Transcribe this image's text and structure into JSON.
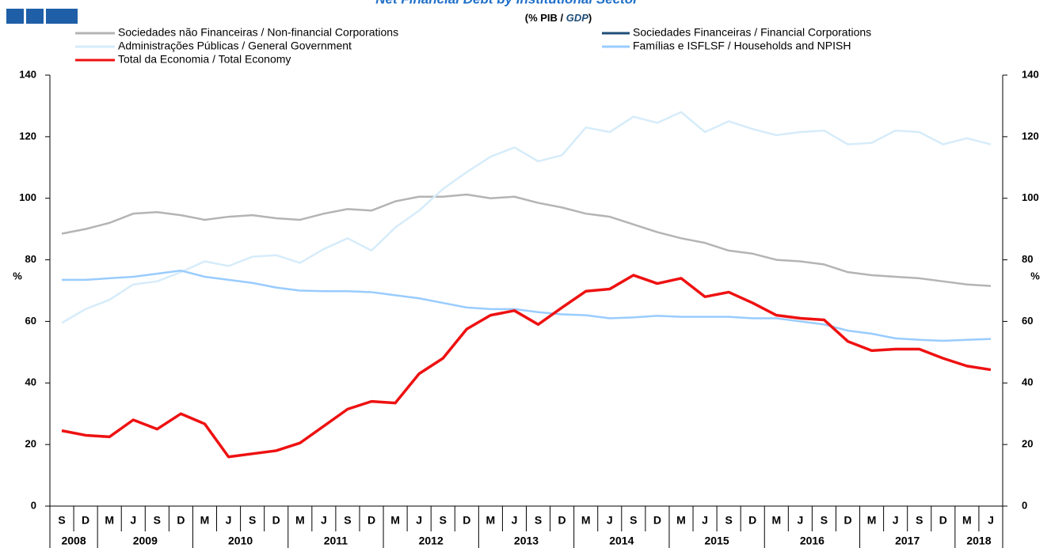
{
  "chart_data": {
    "type": "line",
    "title": "Net Financial Debt by Institutional Sector",
    "subtitle_parts": [
      "(% PIB / ",
      "GDP",
      ")"
    ],
    "y_label": "%",
    "categories": [
      "S",
      "D",
      "M",
      "J",
      "S",
      "D",
      "M",
      "J",
      "S",
      "D",
      "M",
      "J",
      "S",
      "D",
      "M",
      "J",
      "S",
      "D",
      "M",
      "J",
      "S",
      "D",
      "M",
      "J",
      "S",
      "D",
      "M",
      "J",
      "S",
      "D",
      "M",
      "J",
      "S",
      "D",
      "M",
      "J",
      "S",
      "D",
      "M",
      "J"
    ],
    "category_groups": [
      "2008",
      "2008",
      "2009",
      "2009",
      "2009",
      "2009",
      "2010",
      "2010",
      "2010",
      "2010",
      "2011",
      "2011",
      "2011",
      "2011",
      "2012",
      "2012",
      "2012",
      "2012",
      "2013",
      "2013",
      "2013",
      "2013",
      "2014",
      "2014",
      "2014",
      "2014",
      "2015",
      "2015",
      "2015",
      "2015",
      "2016",
      "2016",
      "2016",
      "2016",
      "2017",
      "2017",
      "2017",
      "2017",
      "2018",
      "2018"
    ],
    "ylim": [
      0,
      140
    ],
    "yticks": [
      0,
      20,
      40,
      60,
      80,
      100,
      120,
      140
    ],
    "y2lim": [
      0,
      140
    ],
    "y2ticks": [
      0,
      20,
      40,
      60,
      80,
      100,
      120,
      140
    ],
    "series": [
      {
        "name": "Sociedades não Financeiras / Non-financial Corporations",
        "color": "#b4b4b4",
        "values": [
          88.5,
          90,
          92,
          95,
          95.5,
          94.5,
          93,
          94,
          94.5,
          93.5,
          93,
          95,
          96.5,
          96,
          99,
          100.5,
          100.5,
          101.2,
          100,
          100.5,
          98.5,
          97,
          95,
          94,
          91.5,
          89,
          87,
          85.5,
          83,
          82,
          80,
          79.5,
          78.5,
          76,
          75,
          74.5,
          74,
          73,
          72,
          71.5
        ]
      },
      {
        "name": "Sociedades Financeiras / Financial Corporations",
        "color": "#1f4e79",
        "values": [
          null,
          null,
          null,
          null,
          null,
          null,
          null,
          null,
          null,
          null,
          null,
          null,
          null,
          null,
          null,
          null,
          null,
          null,
          null,
          null,
          null,
          null,
          null,
          null,
          null,
          null,
          null,
          null,
          null,
          null,
          null,
          null,
          null,
          null,
          null,
          null,
          null,
          null,
          null,
          null
        ]
      },
      {
        "name": "Administrações Públicas / General Government",
        "color": "#d6ecfa",
        "values": [
          59.5,
          64,
          67,
          72,
          73,
          76,
          79.5,
          78,
          81,
          81.5,
          79,
          83.5,
          87,
          83,
          90.5,
          96,
          103,
          108.5,
          113.5,
          116.5,
          112,
          114,
          123,
          121.5,
          126.5,
          124.5,
          128,
          121.5,
          125,
          122.5,
          120.5,
          121.5,
          122,
          117.5,
          118,
          122,
          121.5,
          117.5,
          119.5,
          117.5
        ]
      },
      {
        "name": "Famílias e ISFLSF / Households and NPISH",
        "color": "#99ccff",
        "values": [
          73.5,
          73.5,
          74,
          74.5,
          75.5,
          76.5,
          74.5,
          73.5,
          72.5,
          71,
          70,
          69.8,
          69.8,
          69.5,
          68.5,
          67.5,
          66,
          64.5,
          64,
          64,
          63,
          62.3,
          62,
          61,
          61.3,
          61.8,
          61.5,
          61.5,
          61.5,
          61,
          61,
          60,
          59,
          57,
          56,
          54.5,
          54,
          53.7,
          54,
          54.3
        ]
      },
      {
        "name": "Total da Economia / Total Economy",
        "color": "#ee1111",
        "values": [
          24.5,
          23,
          22.5,
          28,
          25,
          30,
          26.7,
          16,
          17,
          18,
          20.5,
          26,
          31.5,
          34,
          33.5,
          43,
          48,
          57.5,
          62,
          63.5,
          59,
          64.5,
          69.8,
          70.5,
          75,
          72.3,
          74,
          68,
          69.5,
          66,
          62,
          61,
          60.5,
          53.5,
          50.5,
          51,
          51,
          48,
          45.5,
          44.3
        ]
      }
    ]
  }
}
